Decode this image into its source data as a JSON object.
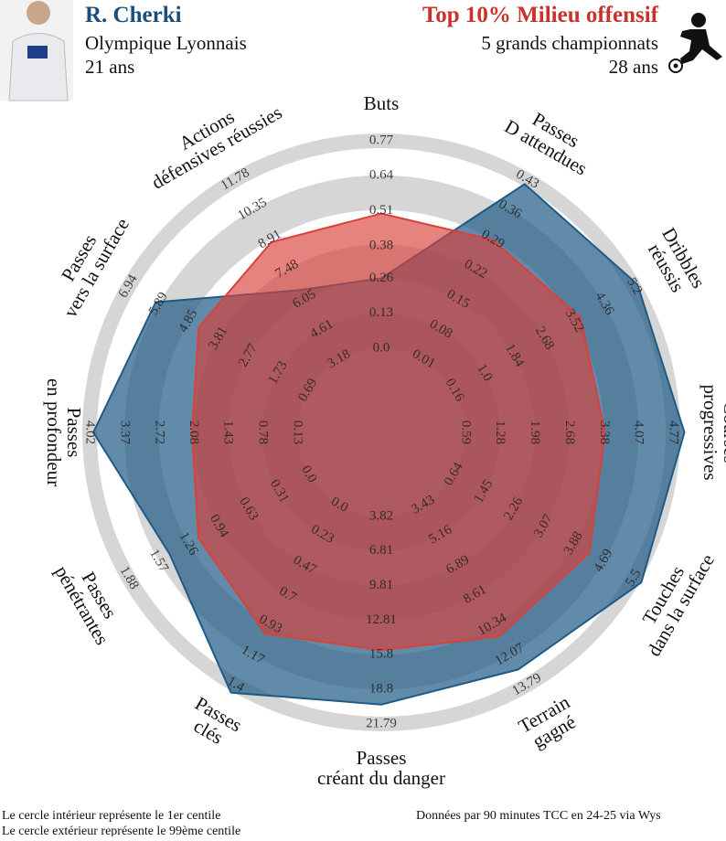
{
  "header": {
    "player": {
      "club": "Olympique Lyonnais",
      "age": "21 ans"
    },
    "comparison": {
      "scope": "5 grands championnats",
      "age": "28 ans"
    }
  },
  "chart_data": {
    "type": "radar",
    "categories": [
      [
        "Buts"
      ],
      [
        "Passes",
        "D attendues"
      ],
      [
        "Dribbles",
        "réussis"
      ],
      [
        "Courses",
        "progressives"
      ],
      [
        "Touches",
        "dans la surface"
      ],
      [
        "Terrain",
        "gagné"
      ],
      [
        "Passes",
        "créant du danger"
      ],
      [
        "Passes",
        "clés"
      ],
      [
        "Passes",
        "pénétrantes"
      ],
      [
        "Passes",
        "en profondeur"
      ],
      [
        "Passes",
        "vers la surface"
      ],
      [
        "Actions",
        "défensives réussies"
      ]
    ],
    "axis_ticks": [
      [
        {
          "value": 0,
          "label": "0.0"
        },
        0.13,
        0.26,
        0.38,
        0.51,
        0.64,
        0.77
      ],
      [
        0.01,
        0.08,
        0.15,
        0.22,
        0.29,
        0.36,
        0.43
      ],
      [
        0.16,
        {
          "value": 1,
          "label": "1.0"
        },
        1.84,
        2.68,
        3.52,
        4.36,
        5.2
      ],
      [
        0.59,
        1.28,
        1.98,
        2.68,
        3.38,
        4.07,
        4.77
      ],
      [
        0.64,
        1.45,
        2.26,
        3.07,
        3.88,
        4.69,
        5.5
      ],
      [
        3.43,
        5.16,
        6.89,
        8.61,
        10.34,
        12.07,
        13.79
      ],
      [
        3.82,
        6.81,
        9.81,
        12.81,
        15.8,
        18.8,
        21.79
      ],
      [
        {
          "value": 0,
          "label": "0.0"
        },
        0.23,
        0.47,
        0.7,
        0.93,
        1.17,
        1.4
      ],
      [
        {
          "value": 0,
          "label": "0.0"
        },
        0.31,
        0.63,
        0.94,
        1.26,
        1.57,
        1.88
      ],
      [
        0.13,
        0.78,
        1.43,
        2.08,
        2.72,
        3.37,
        4.02
      ],
      [
        0.69,
        1.73,
        2.77,
        3.81,
        4.85,
        5.89,
        6.94
      ],
      [
        3.18,
        4.61,
        6.05,
        7.48,
        8.91,
        10.35,
        11.78
      ]
    ],
    "series": [
      {
        "name": "R. Cherki",
        "color": "#1f5a85",
        "values": [
          0.26,
          0.42,
          5.3,
          5.0,
          5.7,
          12.9,
          20.1,
          1.46,
          1.45,
          3.95,
          6.0,
          6.5
        ]
      },
      {
        "name": "Top 10% Milieu offensif",
        "color": "#d9413b",
        "values": [
          0.5,
          0.29,
          3.7,
          3.4,
          4.3,
          11.0,
          15.4,
          1.0,
          1.15,
          2.1,
          4.5,
          8.8
        ]
      }
    ]
  },
  "footer": {
    "notes": [
      "Le cercle intérieur représente le 1er centile",
      "Le cercle extérieur représente le 99ème centile"
    ],
    "source": "Données par 90 minutes TCC en 24-25 via Wys"
  }
}
